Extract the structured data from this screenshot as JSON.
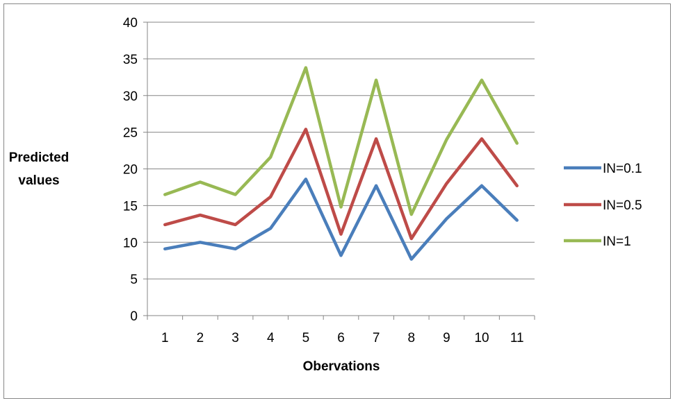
{
  "chart_data": {
    "type": "line",
    "title": "",
    "xlabel": "Obervations",
    "ylabel": "Predicted values",
    "x": [
      1,
      2,
      3,
      4,
      5,
      6,
      7,
      8,
      9,
      10,
      11
    ],
    "ylim": [
      0,
      40
    ],
    "yticks": [
      0,
      5,
      10,
      15,
      20,
      25,
      30,
      35,
      40
    ],
    "grid": true,
    "legend_position": "right",
    "series": [
      {
        "name": "IN=0.1",
        "color": "#4a7ebb",
        "values": [
          9.1,
          10.0,
          9.1,
          11.9,
          18.6,
          8.2,
          17.7,
          7.7,
          13.2,
          17.7,
          13.0
        ]
      },
      {
        "name": "IN=0.5",
        "color": "#be4b48",
        "values": [
          12.4,
          13.7,
          12.4,
          16.2,
          25.4,
          11.1,
          24.1,
          10.5,
          18.0,
          24.1,
          17.7
        ]
      },
      {
        "name": "IN=1",
        "color": "#98b954",
        "values": [
          16.5,
          18.2,
          16.5,
          21.6,
          33.8,
          14.8,
          32.1,
          13.8,
          24.0,
          32.1,
          23.5
        ]
      }
    ]
  }
}
